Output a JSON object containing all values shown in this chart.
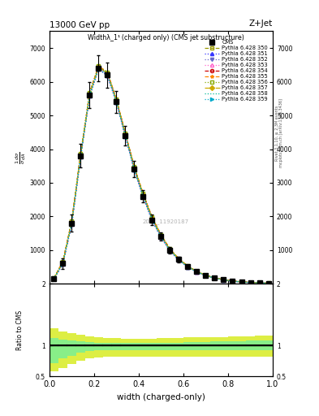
{
  "title_main": "13000 GeV pp",
  "title_right": "Z+Jet",
  "plot_title": "Widthλ_1¹ (charged only) (CMS jet substructure)",
  "xlabel": "width (charged-only)",
  "ylabel_ratio": "Ratio to CMS",
  "cms_label": "CMS",
  "rivet_label": "Rivet 3.1.10, ≥ 2.3M events",
  "mcplots_label": "mcplots.cern.ch [arXiv:1306.3436]",
  "watermark": "2021_11920187",
  "x_bins": [
    0.0,
    0.04,
    0.08,
    0.12,
    0.16,
    0.2,
    0.24,
    0.28,
    0.32,
    0.36,
    0.4,
    0.44,
    0.48,
    0.52,
    0.56,
    0.6,
    0.64,
    0.68,
    0.72,
    0.76,
    0.8,
    0.84,
    0.88,
    0.92,
    0.96,
    1.0
  ],
  "cms_values": [
    150,
    600,
    1800,
    3800,
    5600,
    6400,
    6200,
    5400,
    4400,
    3400,
    2600,
    1900,
    1400,
    1000,
    720,
    510,
    360,
    250,
    175,
    120,
    82,
    57,
    40,
    28,
    19
  ],
  "cms_errors": [
    50,
    150,
    250,
    350,
    380,
    380,
    380,
    320,
    280,
    240,
    190,
    150,
    120,
    95,
    75,
    58,
    45,
    35,
    28,
    22,
    17,
    13,
    10,
    8,
    6
  ],
  "pythia_lines": [
    {
      "label": "Pythia 6.428 350",
      "color": "#999900",
      "marker": "s",
      "ls": "--",
      "mfc": "none",
      "dotted": false,
      "values": [
        160,
        640,
        1850,
        3850,
        5650,
        6450,
        6250,
        5450,
        4450,
        3450,
        2650,
        1950,
        1430,
        1020,
        730,
        520,
        368,
        255,
        178,
        122,
        84,
        58,
        41,
        29,
        20
      ]
    },
    {
      "label": "Pythia 6.428 351",
      "color": "#3333ff",
      "marker": "^",
      "ls": ":",
      "mfc": "#3333ff",
      "dotted": true,
      "values": [
        145,
        590,
        1780,
        3780,
        5580,
        6380,
        6180,
        5380,
        4380,
        3380,
        2580,
        1880,
        1380,
        980,
        700,
        498,
        352,
        243,
        170,
        116,
        80,
        55,
        38,
        27,
        18
      ]
    },
    {
      "label": "Pythia 6.428 352",
      "color": "#6666cc",
      "marker": "v",
      "ls": ":",
      "mfc": "#6666cc",
      "dotted": true,
      "values": [
        140,
        580,
        1770,
        3770,
        5570,
        6370,
        6170,
        5370,
        4370,
        3370,
        2570,
        1870,
        1370,
        970,
        693,
        492,
        348,
        240,
        168,
        114,
        78,
        54,
        37,
        26,
        18
      ]
    },
    {
      "label": "Pythia 6.428 353",
      "color": "#ff66cc",
      "marker": "^",
      "ls": ":",
      "mfc": "none",
      "dotted": true,
      "values": [
        155,
        610,
        1800,
        3800,
        5600,
        6400,
        6200,
        5400,
        4400,
        3400,
        2600,
        1900,
        1390,
        990,
        708,
        503,
        356,
        246,
        172,
        118,
        81,
        56,
        39,
        28,
        19
      ]
    },
    {
      "label": "Pythia 6.428 354",
      "color": "#cc0000",
      "marker": "o",
      "ls": "--",
      "mfc": "none",
      "dotted": false,
      "values": [
        162,
        648,
        1860,
        3860,
        5660,
        6460,
        6260,
        5460,
        4460,
        3460,
        2660,
        1960,
        1440,
        1025,
        733,
        522,
        370,
        256,
        179,
        122,
        84,
        59,
        41,
        29,
        20
      ]
    },
    {
      "label": "Pythia 6.428 355",
      "color": "#ff8800",
      "marker": "*",
      "ls": "--",
      "mfc": "#ff8800",
      "dotted": false,
      "values": [
        168,
        658,
        1870,
        3870,
        5670,
        6470,
        6270,
        5470,
        4470,
        3470,
        2670,
        1970,
        1450,
        1032,
        738,
        526,
        373,
        258,
        181,
        124,
        85,
        60,
        42,
        30,
        20
      ]
    },
    {
      "label": "Pythia 6.428 356",
      "color": "#88aa00",
      "marker": "s",
      "ls": ":",
      "mfc": "none",
      "dotted": true,
      "values": [
        172,
        662,
        1875,
        3875,
        5675,
        6475,
        6275,
        5475,
        4475,
        3475,
        2675,
        1975,
        1455,
        1036,
        742,
        529,
        375,
        260,
        182,
        125,
        86,
        61,
        43,
        30,
        21
      ]
    },
    {
      "label": "Pythia 6.428 357",
      "color": "#ccaa00",
      "marker": "D",
      "ls": "-.",
      "mfc": "#ccaa00",
      "dotted": false,
      "values": [
        158,
        628,
        1830,
        3830,
        5630,
        6430,
        6230,
        5430,
        4430,
        3430,
        2630,
        1930,
        1415,
        1008,
        721,
        513,
        363,
        251,
        176,
        120,
        83,
        57,
        40,
        28,
        19
      ]
    },
    {
      "label": "Pythia 6.428 358",
      "color": "#00bb99",
      "marker": "None",
      "ls": ":",
      "mfc": "#00bb99",
      "dotted": true,
      "values": [
        152,
        618,
        1820,
        3820,
        5620,
        6420,
        6220,
        5420,
        4420,
        3420,
        2620,
        1920,
        1408,
        1003,
        717,
        510,
        361,
        249,
        174,
        119,
        82,
        56,
        39,
        28,
        19
      ]
    },
    {
      "label": "Pythia 6.428 359",
      "color": "#00aacc",
      "marker": ">",
      "ls": ":",
      "mfc": "#00aacc",
      "dotted": true,
      "values": [
        148,
        598,
        1785,
        3785,
        5585,
        6385,
        6185,
        5385,
        4385,
        3385,
        2585,
        1885,
        1383,
        985,
        704,
        500,
        354,
        244,
        171,
        117,
        80,
        55,
        38,
        27,
        18
      ]
    }
  ],
  "ratio_band_inner_lo": [
    0.72,
    0.8,
    0.84,
    0.89,
    0.91,
    0.92,
    0.93,
    0.93,
    0.93,
    0.93,
    0.93,
    0.93,
    0.93,
    0.93,
    0.93,
    0.93,
    0.93,
    0.93,
    0.93,
    0.93,
    0.93,
    0.93,
    0.93,
    0.93,
    0.93
  ],
  "ratio_band_inner_hi": [
    1.12,
    1.1,
    1.08,
    1.07,
    1.06,
    1.05,
    1.05,
    1.05,
    1.05,
    1.05,
    1.05,
    1.05,
    1.05,
    1.05,
    1.05,
    1.06,
    1.06,
    1.06,
    1.07,
    1.07,
    1.07,
    1.07,
    1.08,
    1.08,
    1.09
  ],
  "ratio_band_outer_lo": [
    0.58,
    0.64,
    0.7,
    0.76,
    0.79,
    0.81,
    0.82,
    0.82,
    0.82,
    0.82,
    0.82,
    0.82,
    0.82,
    0.82,
    0.82,
    0.82,
    0.82,
    0.82,
    0.82,
    0.82,
    0.82,
    0.82,
    0.82,
    0.82,
    0.82
  ],
  "ratio_band_outer_hi": [
    1.28,
    1.23,
    1.2,
    1.17,
    1.15,
    1.13,
    1.12,
    1.12,
    1.11,
    1.11,
    1.11,
    1.11,
    1.12,
    1.12,
    1.12,
    1.13,
    1.13,
    1.13,
    1.14,
    1.14,
    1.15,
    1.15,
    1.15,
    1.16,
    1.16
  ],
  "ylim_main": [
    0,
    7500
  ],
  "ylim_ratio": [
    0.5,
    2.0
  ],
  "background_color": "#ffffff",
  "inner_band_color": "#88ee88",
  "outer_band_color": "#ddee44"
}
